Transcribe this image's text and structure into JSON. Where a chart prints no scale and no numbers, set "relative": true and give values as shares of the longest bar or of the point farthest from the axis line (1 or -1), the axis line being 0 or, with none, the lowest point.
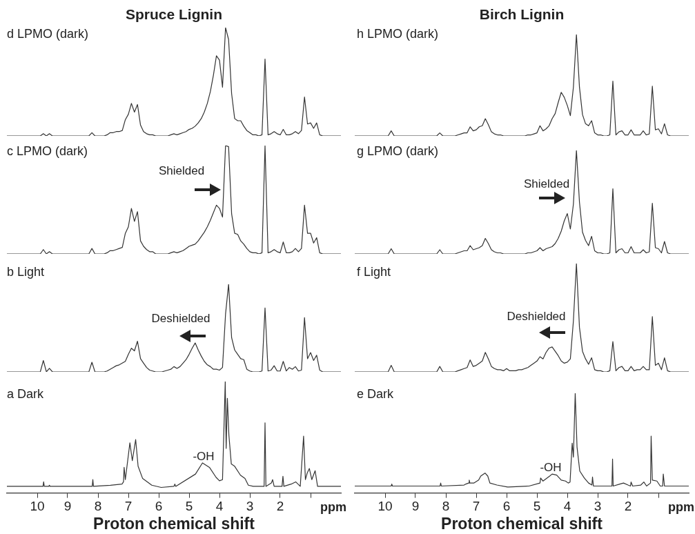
{
  "chart_data": [
    {
      "type": "line",
      "relative": true,
      "title": "Spruce Lignin",
      "color": "#333333",
      "tick_labels": false,
      "annotations": [
        "d LPMO (dark)"
      ],
      "categories": [
        null,
        null,
        null,
        null,
        null,
        null,
        null,
        null,
        null,
        null,
        null,
        null,
        null,
        null,
        null,
        null,
        null,
        null,
        null,
        null,
        null,
        null,
        null,
        null,
        null,
        null,
        null,
        null,
        null,
        null,
        null,
        null,
        null,
        null,
        null,
        null,
        null,
        null,
        null,
        null,
        null,
        null,
        null,
        null,
        null,
        null,
        null,
        null,
        null,
        null,
        null,
        null,
        null,
        null,
        null,
        null,
        null,
        null,
        null,
        null,
        null,
        null,
        null,
        null,
        null,
        null,
        null,
        null,
        null,
        null,
        null,
        null,
        null,
        null,
        null,
        null,
        null,
        null,
        null,
        null,
        null,
        null,
        null,
        null,
        null,
        null,
        null,
        null,
        null,
        null,
        null,
        null,
        null,
        null,
        null,
        null,
        null,
        null,
        null,
        null,
        null,
        null,
        null,
        null,
        null,
        null,
        null,
        null,
        null,
        null,
        null
      ],
      "values": [
        0,
        0,
        0,
        0,
        0,
        0,
        0,
        0,
        0,
        0,
        0,
        0,
        0.02,
        0,
        0.02,
        0,
        0,
        0,
        0,
        0,
        0,
        0,
        0,
        0,
        0,
        0,
        0,
        0,
        0.03,
        0,
        0,
        0,
        0,
        0.01,
        0.03,
        0.03,
        0.04,
        0.04,
        0.05,
        0.15,
        0.2,
        0.3,
        0.22,
        0.29,
        0.1,
        0.04,
        0.02,
        0.01,
        0.01,
        0,
        0,
        0,
        0,
        0,
        0.01,
        0.02,
        0.01,
        0.02,
        0.03,
        0.04,
        0.06,
        0.07,
        0.09,
        0.12,
        0.16,
        0.22,
        0.3,
        0.41,
        0.56,
        0.74,
        0.7,
        0.45,
        1,
        0.89,
        0.39,
        0.16,
        0.14,
        0.14,
        0.09,
        0.05,
        0.03,
        0.01,
        0.01,
        0,
        0.01,
        0.71,
        0.01,
        0.02,
        0.04,
        0.02,
        0.01,
        0.06,
        0.01,
        0.01,
        0.02,
        0.04,
        0.02,
        0.05,
        0.36,
        0.11,
        0.12,
        0.07,
        0.12,
        0.01,
        0,
        0,
        0,
        0,
        0,
        0,
        0
      ]
    },
    {
      "type": "line",
      "relative": true,
      "color": "#333333",
      "tick_labels": false,
      "annotations": [
        "c LPMO (dark)",
        "Shielded"
      ],
      "categories": [
        null,
        null,
        null,
        null,
        null,
        null,
        null,
        null,
        null,
        null,
        null,
        null,
        null,
        null,
        null,
        null,
        null,
        null,
        null,
        null,
        null,
        null,
        null,
        null,
        null,
        null,
        null,
        null,
        null,
        null,
        null,
        null,
        null,
        null,
        null,
        null,
        null,
        null,
        null,
        null,
        null,
        null,
        null,
        null,
        null,
        null,
        null,
        null,
        null,
        null,
        null,
        null,
        null,
        null,
        null,
        null,
        null,
        null,
        null,
        null,
        null,
        null,
        null,
        null,
        null,
        null,
        null,
        null,
        null,
        null,
        null,
        null,
        null,
        null,
        null,
        null,
        null,
        null,
        null,
        null,
        null,
        null,
        null,
        null,
        null,
        null,
        null,
        null,
        null,
        null,
        null,
        null,
        null,
        null,
        null,
        null,
        null,
        null,
        null,
        null,
        null,
        null,
        null,
        null,
        null,
        null,
        null,
        null,
        null,
        null,
        null
      ],
      "values": [
        0,
        0,
        0,
        0,
        0,
        0,
        0,
        0,
        0,
        0,
        0,
        0,
        0.04,
        0,
        0.02,
        0,
        0,
        0,
        0,
        0,
        0,
        0,
        0,
        0,
        0,
        0,
        0,
        0,
        0.05,
        0,
        0,
        0,
        0,
        0.01,
        0.03,
        0.03,
        0.04,
        0.05,
        0.06,
        0.19,
        0.25,
        0.42,
        0.3,
        0.39,
        0.12,
        0.07,
        0.04,
        0.02,
        0.02,
        0,
        0,
        0,
        0,
        0,
        0.01,
        0.02,
        0.01,
        0.02,
        0.03,
        0.05,
        0.07,
        0.08,
        0.09,
        0.12,
        0.16,
        0.2,
        0.25,
        0.31,
        0.38,
        0.45,
        0.42,
        0.34,
        1,
        0.99,
        0.37,
        0.19,
        0.18,
        0.12,
        0.09,
        0.05,
        0.02,
        0.01,
        0.01,
        0,
        0.01,
        1,
        0.01,
        0.02,
        0.04,
        0.02,
        0.01,
        0.11,
        0.01,
        0.01,
        0.02,
        0.05,
        0.02,
        0.05,
        0.45,
        0.19,
        0.19,
        0.1,
        0.15,
        0.01,
        0,
        0,
        0,
        0,
        0,
        0,
        0
      ]
    },
    {
      "type": "line",
      "relative": true,
      "color": "#333333",
      "tick_labels": false,
      "annotations": [
        "b Light",
        "Deshielded"
      ],
      "categories": [
        null,
        null,
        null,
        null,
        null,
        null,
        null,
        null,
        null,
        null,
        null,
        null,
        null,
        null,
        null,
        null,
        null,
        null,
        null,
        null,
        null,
        null,
        null,
        null,
        null,
        null,
        null,
        null,
        null,
        null,
        null,
        null,
        null,
        null,
        null,
        null,
        null,
        null,
        null,
        null,
        null,
        null,
        null,
        null,
        null,
        null,
        null,
        null,
        null,
        null,
        null,
        null,
        null,
        null,
        null,
        null,
        null,
        null,
        null,
        null,
        null,
        null,
        null,
        null,
        null,
        null,
        null,
        null,
        null,
        null,
        null,
        null,
        null,
        null,
        null,
        null,
        null,
        null,
        null,
        null,
        null,
        null,
        null,
        null,
        null,
        null,
        null,
        null,
        null,
        null,
        null,
        null,
        null,
        null,
        null,
        null,
        null,
        null,
        null,
        null,
        null,
        null,
        null,
        null,
        null,
        null,
        null,
        null,
        null,
        null,
        null
      ],
      "values": [
        0,
        0,
        0,
        0,
        0,
        0,
        0,
        0,
        0,
        0,
        0,
        0,
        0.13,
        0,
        0.04,
        0,
        0,
        0,
        0,
        0,
        0,
        0,
        0,
        0,
        0,
        0,
        0,
        0,
        0.11,
        0,
        0,
        0,
        0,
        0.01,
        0.03,
        0.05,
        0.07,
        0.08,
        0.1,
        0.12,
        0.2,
        0.27,
        0.24,
        0.35,
        0.15,
        0.1,
        0.05,
        0.02,
        0.01,
        0,
        0,
        0,
        0.01,
        0.02,
        0.03,
        0.06,
        0.04,
        0.06,
        0.1,
        0.14,
        0.2,
        0.27,
        0.33,
        0.25,
        0.18,
        0.12,
        0.08,
        0.06,
        0.03,
        0.03,
        0.02,
        0.05,
        0.66,
        1,
        0.39,
        0.25,
        0.2,
        0.15,
        0.14,
        0.03,
        0.01,
        0,
        0,
        0,
        0.01,
        0.73,
        0.01,
        0.02,
        0.07,
        0.01,
        0.01,
        0.12,
        0.01,
        0.05,
        0.03,
        0.06,
        0.01,
        0.02,
        0.62,
        0.15,
        0.22,
        0.13,
        0.19,
        0.02,
        0,
        0,
        0,
        0,
        0,
        0,
        0
      ]
    },
    {
      "type": "line",
      "relative": true,
      "color": "#333333",
      "tick_labels": "x",
      "xlim": [
        11,
        0
      ],
      "xticks": [
        10,
        9,
        8,
        7,
        6,
        5,
        4,
        3,
        2,
        {
          "value": 1,
          "label": null
        }
      ],
      "xlabel": "Proton chemical shift",
      "annotations": [
        "a Dark",
        "-OH",
        "ppm"
      ],
      "x": [
        11,
        9.81,
        9.79,
        9.77,
        9.62,
        9.6,
        9.58,
        8.19,
        8.17,
        8.15,
        7.59,
        7.21,
        7.16,
        7.14,
        7.1,
        6.95,
        6.87,
        6.76,
        6.68,
        6.53,
        6.23,
        5.92,
        5.5,
        5.47,
        5.44,
        4.79,
        4.56,
        4.33,
        4.11,
        4.0,
        3.9,
        3.81,
        3.78,
        3.74,
        3.69,
        3.61,
        3.5,
        3.31,
        3.16,
        3.05,
        2.89,
        2.53,
        2.5,
        2.47,
        2.29,
        2.25,
        2.2,
        1.94,
        1.91,
        1.88,
        1.64,
        1.49,
        1.34,
        1.23,
        1.17,
        1.11,
        1.04,
        0.96,
        0.85,
        0.77,
        0.6,
        0
      ],
      "values": [
        0.06,
        0.06,
        0.1,
        0.06,
        0.06,
        0.07,
        0.06,
        0.06,
        0.12,
        0.06,
        0.07,
        0.08,
        0.1,
        0.23,
        0.12,
        0.45,
        0.29,
        0.48,
        0.24,
        0.13,
        0.07,
        0.05,
        0.06,
        0.08,
        0.06,
        0.17,
        0.27,
        0.23,
        0.14,
        0.11,
        0.12,
        1,
        0.4,
        0.85,
        0.52,
        0.26,
        0.24,
        0.16,
        0.13,
        0.07,
        0.06,
        0.06,
        0.63,
        0.06,
        0.09,
        0.12,
        0.06,
        0.06,
        0.15,
        0.06,
        0.08,
        0.1,
        0.06,
        0.51,
        0.12,
        0.18,
        0.22,
        0.12,
        0.2,
        0.06,
        0.06,
        0.06
      ]
    },
    {
      "type": "line",
      "relative": true,
      "title": "Birch Lignin",
      "color": "#333333",
      "tick_labels": false,
      "annotations": [
        "h LPMO (dark)"
      ],
      "categories": [
        null,
        null,
        null,
        null,
        null,
        null,
        null,
        null,
        null,
        null,
        null,
        null,
        null,
        null,
        null,
        null,
        null,
        null,
        null,
        null,
        null,
        null,
        null,
        null,
        null,
        null,
        null,
        null,
        null,
        null,
        null,
        null,
        null,
        null,
        null,
        null,
        null,
        null,
        null,
        null,
        null,
        null,
        null,
        null,
        null,
        null,
        null,
        null,
        null,
        null,
        null,
        null,
        null,
        null,
        null,
        null,
        null,
        null,
        null,
        null,
        null,
        null,
        null,
        null,
        null,
        null,
        null,
        null,
        null,
        null,
        null,
        null,
        null,
        null,
        null,
        null,
        null,
        null,
        null,
        null,
        null,
        null,
        null,
        null,
        null,
        null,
        null,
        null,
        null,
        null,
        null,
        null,
        null,
        null,
        null,
        null,
        null,
        null,
        null,
        null,
        null,
        null,
        null,
        null,
        null,
        null,
        null,
        null,
        null,
        null,
        null
      ],
      "values": [
        0,
        0,
        0,
        0,
        0,
        0,
        0,
        0,
        0,
        0,
        0,
        0,
        0.05,
        0,
        0,
        0,
        0,
        0,
        0,
        0,
        0,
        0,
        0,
        0,
        0,
        0,
        0,
        0,
        0.03,
        0,
        0,
        0,
        0,
        0,
        0.01,
        0.02,
        0.03,
        0.03,
        0.09,
        0.05,
        0.06,
        0.09,
        0.1,
        0.17,
        0.11,
        0.04,
        0.02,
        0.01,
        0.01,
        0,
        0,
        0,
        0,
        0,
        0,
        0,
        0,
        0.01,
        0.01,
        0.02,
        0.03,
        0.1,
        0.05,
        0.07,
        0.1,
        0.17,
        0.22,
        0.33,
        0.43,
        0.38,
        0.3,
        0.2,
        0.48,
        1,
        0.48,
        0.21,
        0.12,
        0.1,
        0.15,
        0.03,
        0.01,
        0.01,
        0,
        0,
        0.01,
        0.54,
        0.01,
        0.04,
        0.05,
        0.01,
        0.01,
        0.06,
        0.01,
        0.01,
        0.01,
        0.05,
        0.01,
        0.02,
        0.49,
        0.06,
        0.07,
        0.02,
        0.12,
        0.01,
        0,
        0,
        0,
        0,
        0,
        0,
        0
      ]
    },
    {
      "type": "line",
      "relative": true,
      "color": "#333333",
      "tick_labels": false,
      "annotations": [
        "g LPMO (dark)",
        "Shielded"
      ],
      "categories": [
        null,
        null,
        null,
        null,
        null,
        null,
        null,
        null,
        null,
        null,
        null,
        null,
        null,
        null,
        null,
        null,
        null,
        null,
        null,
        null,
        null,
        null,
        null,
        null,
        null,
        null,
        null,
        null,
        null,
        null,
        null,
        null,
        null,
        null,
        null,
        null,
        null,
        null,
        null,
        null,
        null,
        null,
        null,
        null,
        null,
        null,
        null,
        null,
        null,
        null,
        null,
        null,
        null,
        null,
        null,
        null,
        null,
        null,
        null,
        null,
        null,
        null,
        null,
        null,
        null,
        null,
        null,
        null,
        null,
        null,
        null,
        null,
        null,
        null,
        null,
        null,
        null,
        null,
        null,
        null,
        null,
        null,
        null,
        null,
        null,
        null,
        null,
        null,
        null,
        null,
        null,
        null,
        null,
        null,
        null,
        null,
        null,
        null,
        null,
        null,
        null,
        null,
        null,
        null,
        null,
        null,
        null,
        null,
        null,
        null,
        null
      ],
      "values": [
        0,
        0,
        0,
        0,
        0,
        0,
        0,
        0,
        0,
        0,
        0,
        0,
        0.05,
        0,
        0,
        0,
        0,
        0,
        0,
        0,
        0,
        0,
        0,
        0,
        0,
        0,
        0,
        0,
        0.04,
        0,
        0,
        0,
        0,
        0,
        0.01,
        0.02,
        0.03,
        0.03,
        0.08,
        0.04,
        0.05,
        0.06,
        0.08,
        0.15,
        0.1,
        0.04,
        0.02,
        0.01,
        0.01,
        0,
        0,
        0,
        0,
        0,
        0,
        0,
        0,
        0.01,
        0.01,
        0.02,
        0.03,
        0.06,
        0.03,
        0.05,
        0.06,
        0.07,
        0.1,
        0.15,
        0.22,
        0.32,
        0.39,
        0.24,
        0.48,
        1,
        0.5,
        0.21,
        0.13,
        0.08,
        0.17,
        0.03,
        0.01,
        0.01,
        0,
        0,
        0.01,
        0.63,
        0.01,
        0.04,
        0.05,
        0.01,
        0.01,
        0.07,
        0.01,
        0.01,
        0.01,
        0.04,
        0.01,
        0.02,
        0.49,
        0.06,
        0.05,
        0.01,
        0.12,
        0.01,
        0,
        0,
        0,
        0,
        0,
        0,
        0
      ]
    },
    {
      "type": "line",
      "relative": true,
      "color": "#333333",
      "tick_labels": false,
      "annotations": [
        "f Light",
        "Deshielded"
      ],
      "categories": [
        null,
        null,
        null,
        null,
        null,
        null,
        null,
        null,
        null,
        null,
        null,
        null,
        null,
        null,
        null,
        null,
        null,
        null,
        null,
        null,
        null,
        null,
        null,
        null,
        null,
        null,
        null,
        null,
        null,
        null,
        null,
        null,
        null,
        null,
        null,
        null,
        null,
        null,
        null,
        null,
        null,
        null,
        null,
        null,
        null,
        null,
        null,
        null,
        null,
        null,
        null,
        null,
        null,
        null,
        null,
        null,
        null,
        null,
        null,
        null,
        null,
        null,
        null,
        null,
        null,
        null,
        null,
        null,
        null,
        null,
        null,
        null,
        null,
        null,
        null,
        null,
        null,
        null,
        null,
        null,
        null,
        null,
        null,
        null,
        null,
        null,
        null,
        null,
        null,
        null,
        null,
        null,
        null,
        null,
        null,
        null,
        null,
        null,
        null,
        null,
        null,
        null,
        null,
        null,
        null,
        null,
        null,
        null,
        null,
        null,
        null
      ],
      "values": [
        0,
        0,
        0,
        0,
        0,
        0,
        0,
        0,
        0,
        0,
        0,
        0,
        0.06,
        0,
        0,
        0,
        0,
        0,
        0,
        0,
        0,
        0,
        0,
        0,
        0,
        0,
        0,
        0,
        0.05,
        0,
        0,
        0,
        0,
        0,
        0.01,
        0.02,
        0.03,
        0.04,
        0.11,
        0.05,
        0.06,
        0.08,
        0.1,
        0.18,
        0.12,
        0.05,
        0.03,
        0.02,
        0.02,
        0.01,
        0.03,
        0.01,
        0.01,
        0.01,
        0.02,
        0.02,
        0.03,
        0.04,
        0.06,
        0.08,
        0.1,
        0.14,
        0.12,
        0.18,
        0.22,
        0.23,
        0.19,
        0.15,
        0.1,
        0.08,
        0.09,
        0.12,
        0.47,
        1,
        0.41,
        0.19,
        0.12,
        0.07,
        0.13,
        0.02,
        0.01,
        0.01,
        0,
        0,
        0.01,
        0.28,
        0.01,
        0.04,
        0.05,
        0.01,
        0.01,
        0.05,
        0.01,
        0.02,
        0.02,
        0.05,
        0.02,
        0.02,
        0.51,
        0.06,
        0.08,
        0.02,
        0.13,
        0.01,
        0,
        0,
        0,
        0,
        0,
        0,
        0
      ]
    },
    {
      "type": "line",
      "relative": true,
      "color": "#333333",
      "tick_labels": "x",
      "xlim": [
        11,
        0
      ],
      "xticks": [
        10,
        9,
        8,
        7,
        6,
        5,
        4,
        3,
        2,
        {
          "value": 1,
          "label": null
        }
      ],
      "xlabel": "Proton chemical shift",
      "annotations": [
        "e Dark",
        "-OH",
        "ppm"
      ],
      "x": [
        11,
        9.8,
        9.78,
        9.76,
        8.19,
        8.17,
        8.15,
        7.4,
        7.34,
        7.25,
        7.23,
        7.21,
        7.08,
        6.92,
        6.85,
        6.71,
        6.62,
        6.55,
        6.32,
        5.97,
        5.95,
        5.93,
        5.26,
        4.9,
        4.88,
        4.8,
        4.58,
        4.5,
        4.35,
        4.2,
        4.06,
        3.97,
        3.91,
        3.84,
        3.8,
        3.74,
        3.68,
        3.59,
        3.44,
        3.3,
        3.19,
        3.17,
        3.14,
        2.98,
        2.53,
        2.51,
        2.49,
        2.27,
        2.15,
        2.0,
        1.92,
        1.9,
        1.85,
        1.58,
        1.48,
        1.39,
        1.26,
        1.24,
        1.2,
        1.05,
        0.94,
        0.86,
        0.84,
        0.8,
        0.6,
        0
      ],
      "values": [
        0.07,
        0.07,
        0.09,
        0.07,
        0.07,
        0.1,
        0.07,
        0.08,
        0.09,
        0.1,
        0.13,
        0.1,
        0.1,
        0.13,
        0.17,
        0.2,
        0.17,
        0.1,
        0.08,
        0.06,
        0.06,
        0.06,
        0.07,
        0.1,
        0.15,
        0.12,
        0.17,
        0.19,
        0.18,
        0.13,
        0.12,
        0.1,
        0.11,
        0.5,
        0.36,
        1,
        0.46,
        0.22,
        0.15,
        0.1,
        0.08,
        0.16,
        0.07,
        0.07,
        0.07,
        0.34,
        0.07,
        0.09,
        0.1,
        0.08,
        0.07,
        0.11,
        0.07,
        0.08,
        0.11,
        0.07,
        0.1,
        0.57,
        0.13,
        0.12,
        0.07,
        0.07,
        0.19,
        0.07,
        0.07,
        0.07
      ]
    }
  ]
}
